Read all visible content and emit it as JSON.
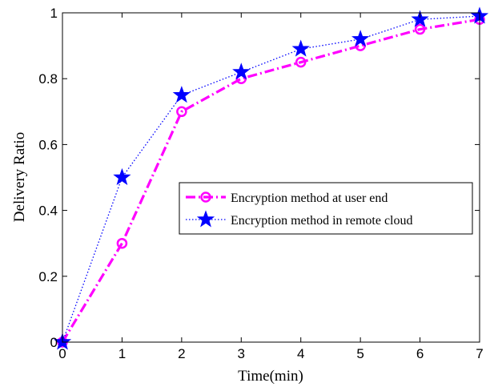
{
  "chart_data": {
    "type": "line",
    "xlabel": "Time(min)",
    "ylabel": "Delivery Ratio",
    "xlim": [
      0,
      7
    ],
    "ylim": [
      0,
      1
    ],
    "xticks": [
      "0",
      "1",
      "2",
      "3",
      "4",
      "5",
      "6",
      "7"
    ],
    "yticks": [
      "0",
      "0.2",
      "0.4",
      "0.6",
      "0.8",
      "1"
    ],
    "grid": false,
    "legend_position": "center-right",
    "x": [
      0,
      1,
      2,
      3,
      4,
      5,
      6,
      7
    ],
    "series": [
      {
        "name": "Encryption method at user end",
        "values": [
          0,
          0.3,
          0.7,
          0.8,
          0.85,
          0.9,
          0.95,
          0.98
        ],
        "color": "#ff00ff",
        "line_style": "dash-dot",
        "marker": "circle"
      },
      {
        "name": "Encryption method in remote cloud",
        "values": [
          0,
          0.5,
          0.75,
          0.82,
          0.89,
          0.92,
          0.98,
          0.99
        ],
        "color": "#0000ff",
        "line_style": "dotted",
        "marker": "star"
      }
    ]
  }
}
